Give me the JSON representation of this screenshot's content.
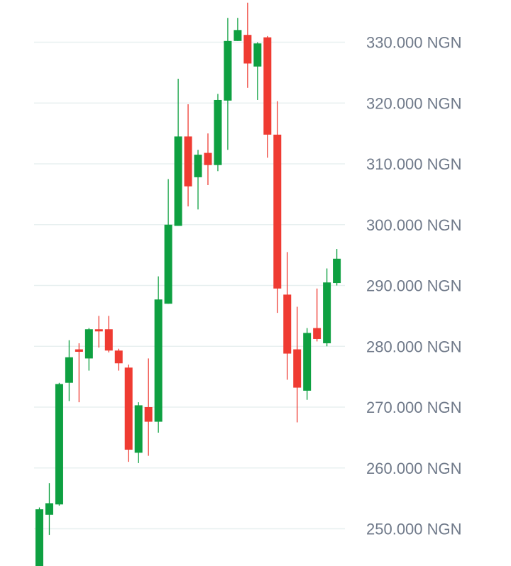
{
  "chart_data": {
    "type": "candlestick",
    "title": "",
    "xlabel": "",
    "ylabel": "",
    "ylim": [
      243000,
      337000
    ],
    "grid": true,
    "legend": "none",
    "colors": {
      "up": "#0ea041",
      "down": "#ef3b32",
      "grid": "#e8f0f0",
      "label": "#707a8a"
    },
    "y_ticks": [
      {
        "value": 250000,
        "label": "250.000 NGN"
      },
      {
        "value": 260000,
        "label": "260.000 NGN"
      },
      {
        "value": 270000,
        "label": "270.000 NGN"
      },
      {
        "value": 280000,
        "label": "280.000 NGN"
      },
      {
        "value": 290000,
        "label": "290.000 NGN"
      },
      {
        "value": 300000,
        "label": "300.000 NGN"
      },
      {
        "value": 310000,
        "label": "310.000 NGN"
      },
      {
        "value": 320000,
        "label": "320.000 NGN"
      },
      {
        "value": 330000,
        "label": "330.000 NGN"
      }
    ],
    "candles": [
      {
        "open": 243000,
        "close": 253200,
        "high": 253500,
        "low": 243000
      },
      {
        "open": 252300,
        "close": 254200,
        "high": 257500,
        "low": 249000
      },
      {
        "open": 254000,
        "close": 273800,
        "high": 274000,
        "low": 253800
      },
      {
        "open": 274000,
        "close": 278200,
        "high": 281000,
        "low": 271000
      },
      {
        "open": 279500,
        "close": 279100,
        "high": 280500,
        "low": 270800
      },
      {
        "open": 278000,
        "close": 282800,
        "high": 283000,
        "low": 276000
      },
      {
        "open": 282800,
        "close": 282600,
        "high": 285000,
        "low": 279800
      },
      {
        "open": 282800,
        "close": 279300,
        "high": 285000,
        "low": 279000
      },
      {
        "open": 279300,
        "close": 277200,
        "high": 279600,
        "low": 276000
      },
      {
        "open": 276500,
        "close": 263000,
        "high": 277000,
        "low": 261000
      },
      {
        "open": 262500,
        "close": 270300,
        "high": 270800,
        "low": 260800
      },
      {
        "open": 270000,
        "close": 267600,
        "high": 278000,
        "low": 262000
      },
      {
        "open": 267600,
        "close": 287700,
        "high": 291500,
        "low": 265800
      },
      {
        "open": 287000,
        "close": 300000,
        "high": 307500,
        "low": 287000
      },
      {
        "open": 299800,
        "close": 314500,
        "high": 324000,
        "low": 299800
      },
      {
        "open": 314500,
        "close": 306300,
        "high": 319800,
        "low": 303000
      },
      {
        "open": 307800,
        "close": 311500,
        "high": 312300,
        "low": 302500
      },
      {
        "open": 311800,
        "close": 309800,
        "high": 315000,
        "low": 306500
      },
      {
        "open": 309800,
        "close": 320500,
        "high": 321500,
        "low": 308800
      },
      {
        "open": 320400,
        "close": 330200,
        "high": 334000,
        "low": 312300
      },
      {
        "open": 330200,
        "close": 332000,
        "high": 334000,
        "low": 330200
      },
      {
        "open": 331200,
        "close": 326500,
        "high": 336500,
        "low": 322500
      },
      {
        "open": 326000,
        "close": 329800,
        "high": 330000,
        "low": 320500
      },
      {
        "open": 330800,
        "close": 314800,
        "high": 331000,
        "low": 311000
      },
      {
        "open": 314800,
        "close": 289500,
        "high": 320300,
        "low": 285500
      },
      {
        "open": 288500,
        "close": 278800,
        "high": 295500,
        "low": 274500
      },
      {
        "open": 279500,
        "close": 273200,
        "high": 286500,
        "low": 267500
      },
      {
        "open": 272700,
        "close": 282200,
        "high": 283000,
        "low": 271200
      },
      {
        "open": 283000,
        "close": 281200,
        "high": 289500,
        "low": 280800
      },
      {
        "open": 280500,
        "close": 290500,
        "high": 292800,
        "low": 280000
      },
      {
        "open": 290400,
        "close": 294400,
        "high": 296000,
        "low": 290000
      }
    ]
  }
}
